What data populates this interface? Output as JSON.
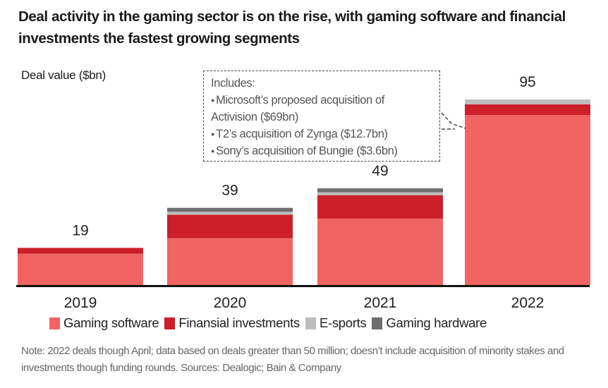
{
  "chart_data": {
    "type": "bar",
    "stacked": true,
    "title": "Deal activity in the gaming sector is on the rise, with gaming software and financial investments the fastest growing segments",
    "ylabel": "Deal value ($bn)",
    "categories": [
      "2019",
      "2020",
      "2021",
      "2022"
    ],
    "totals": [
      "19",
      "39",
      "49",
      "95"
    ],
    "ylim": [
      0,
      95
    ],
    "grid": false,
    "legend_placement": "bottom",
    "series": [
      {
        "name": "Gaming software",
        "color": "#f26462",
        "values": [
          16,
          24,
          34,
          87
        ]
      },
      {
        "name": "Finansial investments",
        "color": "#cc1f2a",
        "values": [
          3,
          12,
          12,
          5.5
        ]
      },
      {
        "name": "E-sports",
        "color": "#bdbdbd",
        "values": [
          0,
          1.5,
          1.5,
          2.5
        ]
      },
      {
        "name": "Gaming hardware",
        "color": "#6d6d6f",
        "values": [
          0,
          2,
          2,
          0
        ]
      }
    ],
    "annotation": {
      "heading": "Includes:",
      "items": [
        "Microsoft’s proposed acquisition of Activision ($69bn)",
        "T2’s acquisition of Zynga ($12.7bn)",
        "Sony’s acquisition of Bungie ($3.6bn)"
      ]
    },
    "note": "Note: 2022 deals though April; data based on deals greater than 50 million; doesn’t include acquisition of minority stakes and investments though funding rounds. Sources: Dealogic; Bain & Company"
  }
}
